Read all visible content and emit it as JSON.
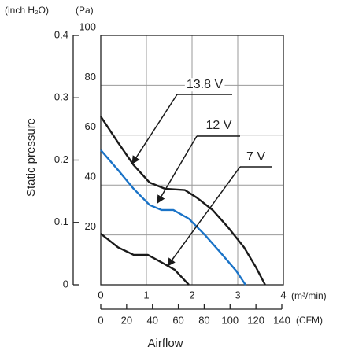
{
  "chart_data": {
    "type": "line",
    "y_label": "Static pressure",
    "x_label": "Airflow",
    "y_unit": "(Pa)",
    "y2_unit": "(inch H₂O)",
    "x_unit": "(m³/min)",
    "x2_unit": "(CFM)",
    "xlim": [
      0,
      4
    ],
    "xticks": [
      0,
      1,
      2,
      3,
      4
    ],
    "x2lim": [
      0,
      140
    ],
    "x2ticks": [
      0,
      20,
      40,
      60,
      80,
      100,
      120,
      140
    ],
    "ylim": [
      0,
      100
    ],
    "yticks": [
      20,
      40,
      60,
      80,
      100
    ],
    "y2lim": [
      0,
      0.4
    ],
    "y2ticks": [
      0,
      0.1,
      0.2,
      0.3,
      0.4
    ],
    "grid": true,
    "series": [
      {
        "name": "13.8 V",
        "color": "#1a1a1a",
        "x": [
          0,
          0.38,
          0.72,
          1.07,
          1.41,
          1.84,
          2.1,
          2.45,
          2.79,
          3.14,
          3.4,
          3.6
        ],
        "values": [
          67.5,
          57,
          48,
          41,
          38.5,
          38,
          35,
          30,
          23,
          15,
          7,
          0
        ]
      },
      {
        "name": "12 V",
        "color": "#1a73c7",
        "x": [
          0,
          0.38,
          0.72,
          1.07,
          1.33,
          1.59,
          1.93,
          2.28,
          2.62,
          2.97,
          3.17
        ],
        "values": [
          54,
          46,
          38.5,
          32,
          30,
          30,
          26.5,
          20,
          13,
          5.5,
          0
        ]
      },
      {
        "name": "7 V",
        "color": "#1a1a1a",
        "x": [
          0,
          0.38,
          0.72,
          1.03,
          1.33,
          1.62,
          1.93
        ],
        "values": [
          20.5,
          15,
          12,
          12,
          9,
          6,
          0
        ]
      }
    ]
  }
}
